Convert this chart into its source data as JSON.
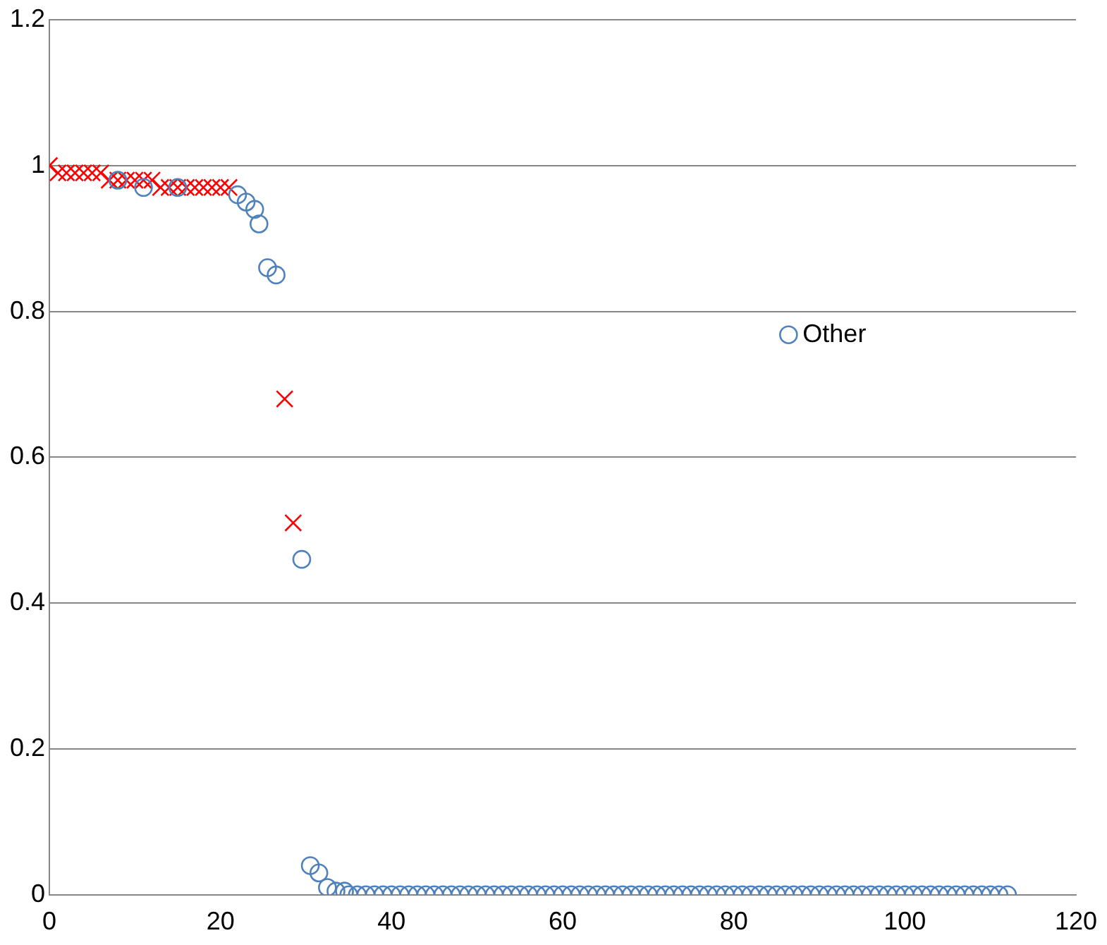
{
  "chart_data": {
    "type": "scatter",
    "xlim": [
      0,
      120
    ],
    "xticks": [
      0,
      20,
      40,
      60,
      80,
      100,
      120
    ],
    "ylim": [
      0,
      1.2
    ],
    "yticks": [
      0,
      0.2,
      0.4,
      0.6,
      0.8,
      1,
      1.2
    ],
    "grid": "y",
    "legend": "right",
    "series": [
      {
        "color": "#ff0000",
        "marker": "cross",
        "x": [
          0,
          1,
          2,
          3,
          4,
          5,
          6,
          7,
          8,
          9,
          10,
          11,
          12,
          13,
          14,
          15,
          16,
          17,
          18,
          19,
          20,
          21,
          27.5,
          28.5
        ],
        "values": [
          1.0,
          0.99,
          0.99,
          0.99,
          0.99,
          0.99,
          0.99,
          0.98,
          0.98,
          0.98,
          0.98,
          0.98,
          0.98,
          0.97,
          0.97,
          0.97,
          0.97,
          0.97,
          0.97,
          0.97,
          0.97,
          0.97,
          0.68,
          0.51
        ]
      },
      {
        "name": "Other",
        "color": "#4f81bd",
        "marker": "circle",
        "x": [
          8,
          11,
          15,
          22,
          23,
          24,
          24.5,
          25.5,
          26.5,
          29.5,
          30.5,
          31.5,
          32.5,
          33.5,
          34.5,
          35,
          36,
          37,
          38,
          39,
          40,
          41,
          42,
          43,
          44,
          45,
          46,
          47,
          48,
          49,
          50,
          51,
          52,
          53,
          54,
          55,
          56,
          57,
          58,
          59,
          60,
          61,
          62,
          63,
          64,
          65,
          66,
          67,
          68,
          69,
          70,
          71,
          72,
          73,
          74,
          75,
          76,
          77,
          78,
          79,
          80,
          81,
          82,
          83,
          84,
          85,
          86,
          87,
          88,
          89,
          90,
          91,
          92,
          93,
          94,
          95,
          96,
          97,
          98,
          99,
          100,
          101,
          102,
          103,
          104,
          105,
          106,
          107,
          108,
          109,
          110,
          111,
          112
        ],
        "values": [
          0.98,
          0.97,
          0.97,
          0.96,
          0.95,
          0.94,
          0.92,
          0.86,
          0.85,
          0.46,
          0.04,
          0.03,
          0.01,
          0.005,
          0.005,
          0,
          0,
          0,
          0,
          0,
          0,
          0,
          0,
          0,
          0,
          0,
          0,
          0,
          0,
          0,
          0,
          0,
          0,
          0,
          0,
          0,
          0,
          0,
          0,
          0,
          0,
          0,
          0,
          0,
          0,
          0,
          0,
          0,
          0,
          0,
          0,
          0,
          0,
          0,
          0,
          0,
          0,
          0,
          0,
          0,
          0,
          0,
          0,
          0,
          0,
          0,
          0,
          0,
          0,
          0,
          0,
          0,
          0,
          0,
          0,
          0,
          0,
          0,
          0,
          0,
          0,
          0,
          0,
          0,
          0,
          0,
          0,
          0,
          0,
          0,
          0,
          0,
          0
        ]
      }
    ]
  }
}
